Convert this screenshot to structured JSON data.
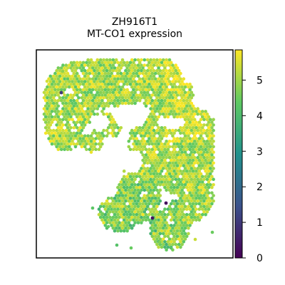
{
  "chart_data": {
    "type": "scatter",
    "title": "ZH916T1",
    "subtitle": "MT-CO1 expression",
    "xlabel": "",
    "ylabel": "",
    "legend": "none",
    "grid": false,
    "colormap": "viridis",
    "colorbar": {
      "label": "",
      "range": [
        0,
        5.85
      ],
      "ticks": [
        0,
        1,
        2,
        3,
        4,
        5
      ],
      "tick_labels": [
        "0",
        "1",
        "2",
        "3",
        "4",
        "5"
      ],
      "colors": [
        "#440154",
        "#3b528b",
        "#21918c",
        "#5ec962",
        "#fde725"
      ]
    },
    "points_summary": {
      "typical_value_range": [
        3.0,
        5.8
      ],
      "low_outliers": 3,
      "low_outlier_values": [
        0.2,
        0.3,
        1.0
      ]
    }
  }
}
